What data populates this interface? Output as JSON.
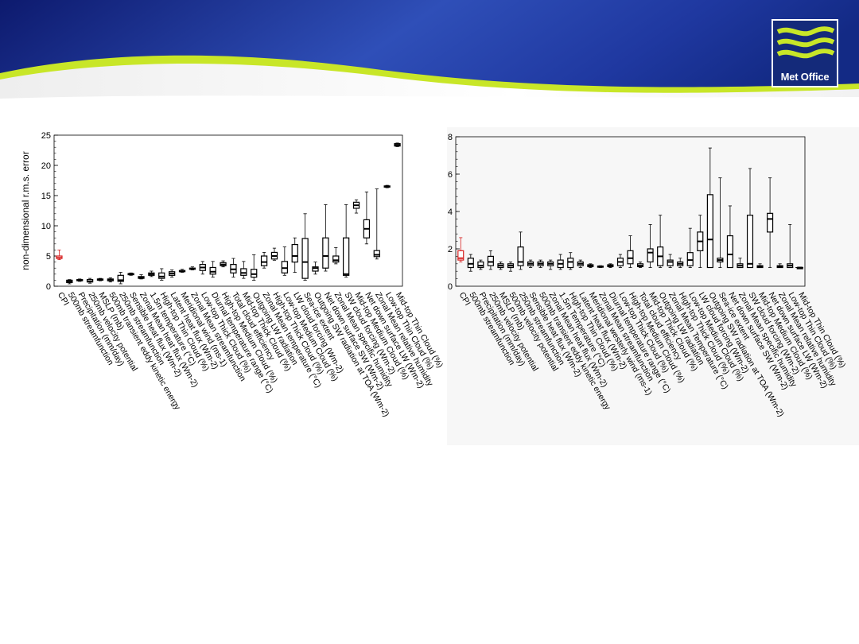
{
  "brand": {
    "name": "Met Office",
    "logo_icon": "met-office-wave-icon",
    "banner_color": "#1a2a8c",
    "accent_color": "#c8e628",
    "highlight_color": "#d62020"
  },
  "chart_data": [
    {
      "type": "box",
      "title": "",
      "ylabel": "non-dimensional r.m.s. error",
      "xlabel": "",
      "ylim": [
        0,
        25
      ],
      "yticks": [
        0,
        5,
        10,
        15,
        20,
        25
      ],
      "grid": false,
      "categories": [
        "CPI",
        "500mb streamfunction",
        "Precipitation (mm/day)",
        "250mb velocity potential",
        "MSLP (mb)",
        "500mb transient eddy kinetic energy",
        "250mb streamfunction",
        "Sensible heat flux (Wm-2)",
        "Zonal Mean heat flux (Wm-2)",
        "1.5m temperature (°C)",
        "High-top Thin Cloud (%)",
        "Latent heat flux (Wm-2)",
        "Meridional wind (ms-1)",
        "Zonal Mean streamfunction",
        "Low-top Thick Cloud (%)",
        "Diurnal temperature range (°C)",
        "High-top Medium Cloud (%)",
        "Total cloud efficiency",
        "Mid-top Thick Cloud (%)",
        "Outgoing LW radiation",
        "Zonal Mean temperature (°C)",
        "High-top Thick Cloud (%)",
        "Low-top Medium Cloud (%)",
        "LW cloud forcing (Wm-2)",
        "Sea-ice extent",
        "Outgoing SW radiation at TOA (Wm-2)",
        "Net down surface SW (Wm-2)",
        "Zonal Mean specific humidity",
        "SW cloud forcing (Wm-2)",
        "Mid-top Medium Cloud (%)",
        "Net down surface LW (Wm-2)",
        "Zonal Mean relative humidity",
        "Low-top Thin Cloud (%)",
        "Mid-top Thin Cloud (%)"
      ],
      "series": [
        {
          "boxes": [
            [
              4.4,
              4.6,
              4.7,
              5.0,
              6.0
            ],
            [
              0.4,
              0.6,
              0.8,
              1.0,
              1.1
            ],
            [
              0.8,
              0.9,
              1.0,
              1.1,
              1.2
            ],
            [
              0.5,
              0.7,
              0.8,
              1.1,
              1.3
            ],
            [
              0.9,
              1.0,
              1.1,
              1.2,
              1.3
            ],
            [
              0.7,
              0.9,
              1.1,
              1.2,
              1.4
            ],
            [
              0.4,
              0.8,
              1.0,
              1.8,
              2.3
            ],
            [
              1.8,
              1.9,
              2.0,
              2.1,
              2.2
            ],
            [
              1.2,
              1.3,
              1.4,
              1.6,
              1.9
            ],
            [
              1.6,
              1.8,
              2.0,
              2.2,
              2.5
            ],
            [
              1.0,
              1.3,
              1.6,
              2.2,
              2.9
            ],
            [
              1.5,
              1.8,
              2.1,
              2.4,
              2.7
            ],
            [
              2.3,
              2.4,
              2.5,
              2.6,
              2.8
            ],
            [
              2.7,
              2.8,
              2.9,
              3.0,
              3.2
            ],
            [
              2.0,
              2.6,
              3.1,
              3.6,
              4.1
            ],
            [
              1.5,
              2.0,
              2.4,
              3.1,
              4.1
            ],
            [
              3.2,
              3.4,
              3.6,
              3.9,
              4.2
            ],
            [
              1.5,
              2.2,
              2.8,
              3.6,
              4.6
            ],
            [
              1.3,
              1.8,
              2.2,
              2.9,
              4.1
            ],
            [
              1.0,
              1.5,
              2.0,
              2.8,
              5.2
            ],
            [
              3.0,
              3.4,
              4.0,
              5.0,
              5.6
            ],
            [
              4.3,
              4.5,
              5.0,
              5.6,
              6.3
            ],
            [
              1.8,
              2.2,
              3.0,
              4.1,
              6.5
            ],
            [
              2.3,
              4.0,
              5.0,
              6.9,
              8.0
            ],
            [
              1.0,
              1.3,
              4.0,
              7.9,
              12.0
            ],
            [
              2.0,
              2.5,
              3.0,
              3.2,
              4.0
            ],
            [
              2.5,
              3.0,
              5.0,
              8.0,
              13.5
            ],
            [
              3.7,
              4.0,
              4.3,
              5.0,
              6.4
            ],
            [
              1.5,
              1.8,
              2.0,
              8.0,
              13.5
            ],
            [
              12.1,
              12.9,
              13.4,
              13.9,
              14.3
            ],
            [
              7.0,
              8.0,
              9.5,
              11.0,
              15.6
            ],
            [
              4.5,
              4.9,
              5.2,
              5.9,
              16.1
            ],
            [
              16.3,
              16.4,
              16.5,
              16.6,
              16.7
            ],
            [
              23.1,
              23.2,
              23.4,
              23.6,
              23.7
            ]
          ]
        }
      ]
    },
    {
      "type": "box",
      "title": "",
      "ylabel": "",
      "xlabel": "",
      "ylim": [
        0,
        8
      ],
      "yticks": [
        0,
        2,
        4,
        6,
        8
      ],
      "grid": false,
      "reference_line": 1,
      "categories": [
        "CPI",
        "500mb streamfunction",
        "Precipitation (mm/day)",
        "250mb velocity potential",
        "MSLP (mb)",
        "500mb velocity potential",
        "250mb streamfunction",
        "Sensible heat flux (Wm-2)",
        "500mb transient eddy kinetic energy",
        "Zonal Mean heat flux (Wm-2)",
        "1.5m Temperature (°C)",
        "High-top Thin Cloud (%)",
        "Latent heat flux (Wm-2)",
        "Meridional westerly wind (ms-1)",
        "Zonal Mean streamfunction",
        "Diurnal temperature range (°C)",
        "Low-top Thick Cloud (%)",
        "High-top Medium Cloud (%)",
        "Total cloud efficiency",
        "Mid-top Thick Cloud (%)",
        "Outgoing LW radiation",
        "Zonal Mean Temperature (°C)",
        "High-top Thick Cloud (%)",
        "Low-top Medium Cloud (%)",
        "LW cloud forcing (Wm-2)",
        "Outgoing SW radiation at TOA (Wm-2)",
        "Sea-ice extent",
        "Net down surface SW (Wm-2)",
        "Zonal Mean specific humidity",
        "SW cloud forcing (Wm-2)",
        "Mid-top Medium Cloud (%)",
        "Net down surface LW (Wm-2)",
        "Zonal Mean relative humidity",
        "Low-top Thin Cloud (%)",
        "Mid-top Thin Cloud (%)"
      ],
      "series": [
        {
          "boxes": [
            [
              1.3,
              1.4,
              1.5,
              1.9,
              2.6
            ],
            [
              0.8,
              1.0,
              1.2,
              1.5,
              1.7
            ],
            [
              0.9,
              1.0,
              1.1,
              1.3,
              1.4
            ],
            [
              0.9,
              1.1,
              1.3,
              1.6,
              1.9
            ],
            [
              0.9,
              1.0,
              1.1,
              1.2,
              1.3
            ],
            [
              0.8,
              1.0,
              1.1,
              1.2,
              1.3
            ],
            [
              0.9,
              1.1,
              1.3,
              2.1,
              2.9
            ],
            [
              1.0,
              1.1,
              1.2,
              1.3,
              1.4
            ],
            [
              1.0,
              1.1,
              1.2,
              1.3,
              1.4
            ],
            [
              0.9,
              1.1,
              1.2,
              1.3,
              1.4
            ],
            [
              0.9,
              1.0,
              1.2,
              1.4,
              1.7
            ],
            [
              0.9,
              1.0,
              1.3,
              1.5,
              1.8
            ],
            [
              1.0,
              1.1,
              1.2,
              1.3,
              1.4
            ],
            [
              1.0,
              1.05,
              1.1,
              1.15,
              1.2
            ],
            [
              1.0,
              1.02,
              1.05,
              1.08,
              1.1
            ],
            [
              1.0,
              1.05,
              1.1,
              1.15,
              1.2
            ],
            [
              1.0,
              1.1,
              1.3,
              1.5,
              1.7
            ],
            [
              1.0,
              1.2,
              1.5,
              1.9,
              2.7
            ],
            [
              1.0,
              1.05,
              1.1,
              1.2,
              1.3
            ],
            [
              1.0,
              1.3,
              1.8,
              2.0,
              3.3
            ],
            [
              1.0,
              1.1,
              1.6,
              2.1,
              3.8
            ],
            [
              1.0,
              1.1,
              1.3,
              1.4,
              1.7
            ],
            [
              1.0,
              1.1,
              1.2,
              1.3,
              1.5
            ],
            [
              1.0,
              1.1,
              1.4,
              1.8,
              3.1
            ],
            [
              1.0,
              1.9,
              2.4,
              2.9,
              3.8
            ],
            [
              1.0,
              1.0,
              2.5,
              4.9,
              7.4
            ],
            [
              1.0,
              1.3,
              1.4,
              1.5,
              5.8
            ],
            [
              1.0,
              1.0,
              1.7,
              2.7,
              4.3
            ],
            [
              1.0,
              1.0,
              1.1,
              1.2,
              1.5
            ],
            [
              1.0,
              1.0,
              1.2,
              3.8,
              6.3
            ],
            [
              1.0,
              1.0,
              1.05,
              1.1,
              1.2
            ],
            [
              1.0,
              2.9,
              3.6,
              3.9,
              5.8
            ],
            [
              1.0,
              1.0,
              1.05,
              1.1,
              1.2
            ],
            [
              1.0,
              1.0,
              1.1,
              1.2,
              3.3
            ],
            [
              1.0,
              1.0,
              1.0,
              1.0,
              1.0
            ]
          ]
        }
      ]
    }
  ]
}
